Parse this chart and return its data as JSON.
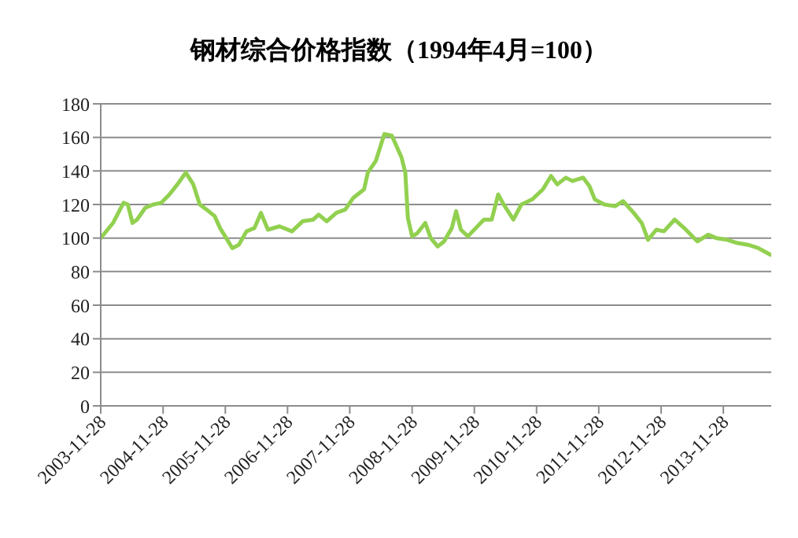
{
  "chart_data": {
    "type": "line",
    "title": "钢材综合价格指数（1994年4月=100）",
    "grid": "y",
    "marker": "none",
    "x": [
      "2003-11-28",
      "2004-02-08",
      "2004-03-10",
      "2004-04-10",
      "2004-05-05",
      "2004-06-01",
      "2004-06-28",
      "2004-08-15",
      "2004-10-01",
      "2004-11-17",
      "2005-01-04",
      "2005-02-20",
      "2005-04-10",
      "2005-05-24",
      "2005-07-01",
      "2005-08-10",
      "2005-09-27",
      "2005-10-28",
      "2006-01-08",
      "2006-02-15",
      "2006-04-01",
      "2006-05-18",
      "2006-06-25",
      "2006-08-05",
      "2006-10-12",
      "2006-12-24",
      "2007-02-24",
      "2007-04-28",
      "2007-05-30",
      "2007-07-16",
      "2007-09-10",
      "2007-11-02",
      "2007-12-19",
      "2008-02-20",
      "2008-03-13",
      "2008-04-29",
      "2008-06-18",
      "2008-08-01",
      "2008-09-27",
      "2008-10-19",
      "2008-11-03",
      "2008-11-28",
      "2008-12-29",
      "2009-02-13",
      "2009-03-17",
      "2009-04-27",
      "2009-06-03",
      "2009-07-19",
      "2009-08-13",
      "2009-09-10",
      "2009-10-21",
      "2009-12-07",
      "2010-01-23",
      "2010-03-10",
      "2010-04-17",
      "2010-05-19",
      "2010-07-15",
      "2010-08-31",
      "2010-11-02",
      "2011-01-04",
      "2011-02-21",
      "2011-03-30",
      "2011-05-19",
      "2011-06-26",
      "2011-08-28",
      "2011-10-04",
      "2011-11-05",
      "2011-12-31",
      "2012-03-03",
      "2012-04-19",
      "2012-06-20",
      "2012-08-06",
      "2012-09-12",
      "2012-10-31",
      "2012-12-14",
      "2013-02-15",
      "2013-04-12",
      "2013-06-29",
      "2013-08-31",
      "2013-10-17",
      "2013-12-19",
      "2014-02-20",
      "2014-04-21",
      "2014-06-21",
      "2014-09-02"
    ],
    "series": [
      {
        "color": "#92d050",
        "values": [
          100,
          109,
          115,
          121,
          120,
          109,
          111,
          118,
          120,
          121,
          126,
          132,
          139,
          132,
          120,
          117,
          113,
          106,
          94,
          96,
          104,
          106,
          115,
          105,
          107,
          104,
          110,
          111,
          114,
          110,
          115,
          117,
          124,
          129,
          139,
          146,
          162,
          161,
          148,
          139,
          112,
          101,
          103,
          109,
          100,
          95,
          98,
          106,
          116,
          105,
          101,
          106,
          111,
          111,
          126,
          120,
          111,
          120,
          123,
          129,
          137,
          132,
          136,
          134,
          136,
          131,
          123,
          120,
          119,
          122,
          115,
          109,
          99,
          105,
          104,
          111,
          106,
          98,
          102,
          100,
          99,
          97,
          96,
          94,
          90
        ]
      }
    ],
    "xlim": [
      "2003-11-28",
      "2014-09-05"
    ],
    "xticks": [
      "2003-11-28",
      "2004-11-28",
      "2005-11-28",
      "2006-11-28",
      "2007-11-28",
      "2008-11-28",
      "2009-11-28",
      "2010-11-28",
      "2011-11-28",
      "2012-11-28",
      "2013-11-28"
    ],
    "ylim": [
      0,
      180
    ],
    "yticks": [
      0,
      20,
      40,
      60,
      80,
      100,
      120,
      140,
      160,
      180
    ]
  }
}
